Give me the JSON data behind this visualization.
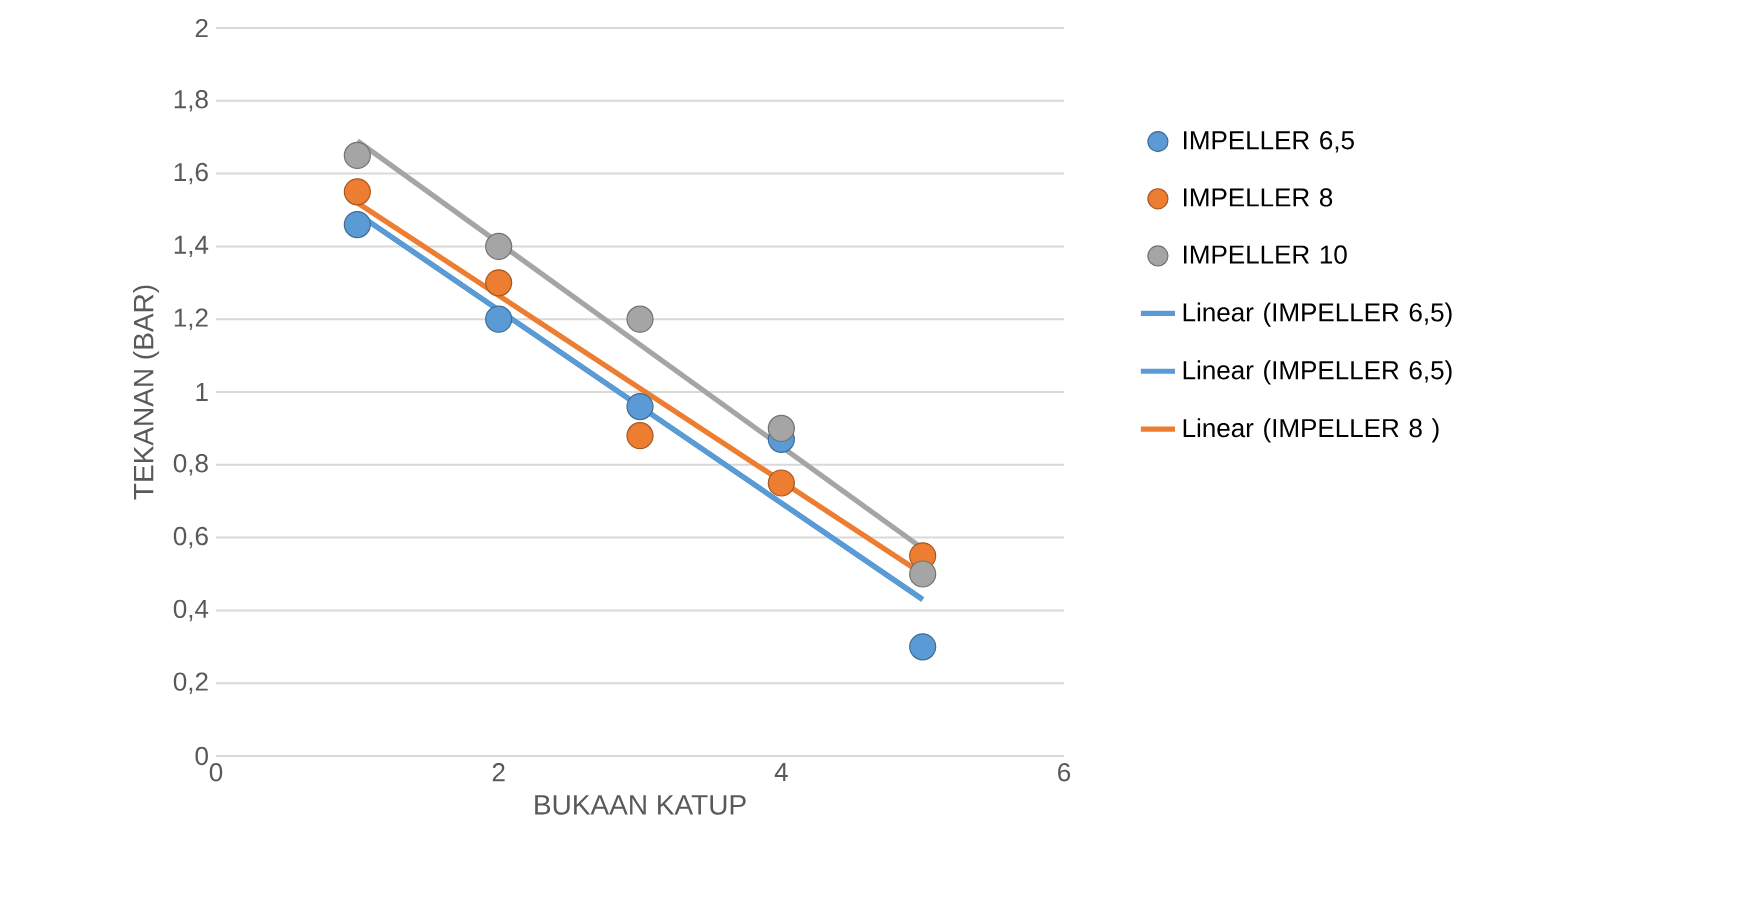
{
  "chart_data": {
    "type": "scatter",
    "xlabel": "BUKAAN KATUP",
    "ylabel": "TEKANAN (BAR)",
    "xlim": [
      0,
      6
    ],
    "xticks": [
      0,
      2,
      4,
      6
    ],
    "ylim": [
      0,
      2
    ],
    "yticks": [
      0,
      {
        "value": 0.2,
        "label": "0,2"
      },
      {
        "value": 0.4,
        "label": "0,4"
      },
      {
        "value": 0.6,
        "label": "0,6"
      },
      {
        "value": 0.8,
        "label": "0,8"
      },
      1,
      {
        "value": 1.2,
        "label": "1,2"
      },
      {
        "value": 1.4,
        "label": "1,4"
      },
      {
        "value": 1.6,
        "label": "1,6"
      },
      {
        "value": 1.8,
        "label": "1,8"
      },
      2
    ],
    "grid": "y",
    "legend": "right",
    "series": [
      {
        "name": "IMPELLER 6,5",
        "marker": "circle",
        "color": "#5b9bd5",
        "x": [
          1,
          2,
          3,
          4,
          5
        ],
        "values": [
          1.46,
          1.2,
          0.96,
          0.87,
          0.3
        ]
      },
      {
        "name": "IMPELLER 8",
        "marker": "circle",
        "color": "#ed7d31",
        "x": [
          1,
          2,
          3,
          4,
          5
        ],
        "values": [
          1.55,
          1.3,
          0.88,
          0.75,
          0.55
        ]
      },
      {
        "name": "IMPELLER 10",
        "marker": "circle",
        "color": "#a5a5a5",
        "x": [
          1,
          2,
          3,
          4,
          5
        ],
        "values": [
          1.65,
          1.4,
          1.2,
          0.9,
          0.5
        ]
      },
      {
        "name": "Linear (IMPELLER 6,5)",
        "type": "line",
        "color": "#5b9bd5",
        "x": [
          1,
          5
        ],
        "values": [
          1.49,
          0.43
        ]
      },
      {
        "name": "Linear (IMPELLER 6,5)",
        "type": "line",
        "color": "#5b9bd5",
        "x": [
          1,
          5
        ],
        "values": [
          1.49,
          0.43
        ]
      },
      {
        "name": "Linear (IMPELLER 8 )",
        "type": "line",
        "color": "#ed7d31",
        "x": [
          1,
          5
        ],
        "values": [
          1.52,
          0.5
        ]
      },
      {
        "type": "line",
        "color": "#a5a5a5",
        "x": [
          1,
          5
        ],
        "values": [
          1.69,
          0.57
        ]
      }
    ]
  }
}
